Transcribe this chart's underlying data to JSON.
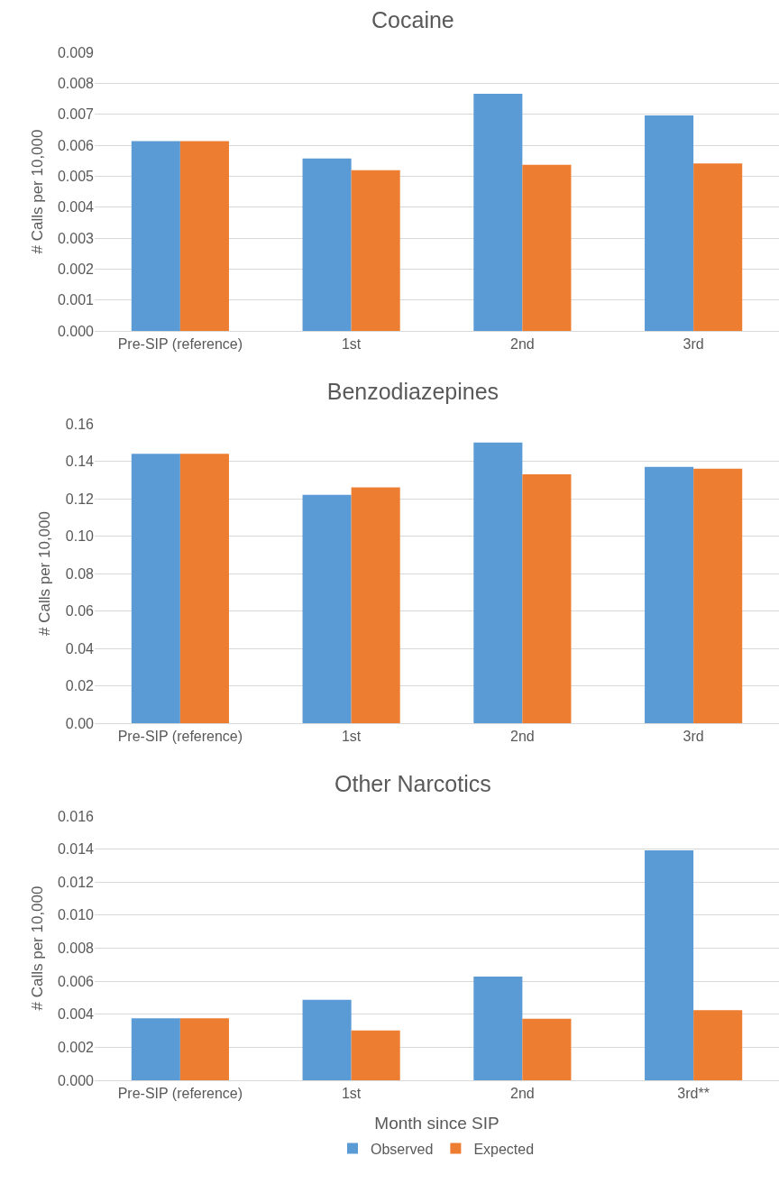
{
  "chart_data": [
    {
      "type": "bar",
      "title": "Cocaine",
      "ylabel": "# Calls per 10,000",
      "categories": [
        "Pre-SIP (reference)",
        "1st",
        "2nd",
        "3rd"
      ],
      "series": [
        {
          "color": "#5b9bd5",
          "values": [
            0.00613,
            0.00557,
            0.00766,
            0.00696
          ]
        },
        {
          "color": "#ed7d31",
          "values": [
            0.00613,
            0.00519,
            0.00537,
            0.00541
          ]
        }
      ],
      "ylim": [
        0,
        0.009
      ],
      "yticks": [
        {
          "value": 0,
          "label": "0.000"
        },
        {
          "value": 0.001,
          "label": "0.001"
        },
        {
          "value": 0.002,
          "label": "0.002"
        },
        {
          "value": 0.003,
          "label": "0.003"
        },
        {
          "value": 0.004,
          "label": "0.004"
        },
        {
          "value": 0.005,
          "label": "0.005"
        },
        {
          "value": 0.006,
          "label": "0.006"
        },
        {
          "value": 0.007,
          "label": "0.007"
        },
        {
          "value": 0.008,
          "label": "0.008"
        },
        {
          "value": 0.009,
          "label": "0.009"
        }
      ],
      "grid": "y"
    },
    {
      "type": "bar",
      "title": "Benzodiazepines",
      "ylabel": "# Calls per 10,000",
      "categories": [
        "Pre-SIP (reference)",
        "1st",
        "2nd",
        "3rd"
      ],
      "series": [
        {
          "color": "#5b9bd5",
          "values": [
            0.144,
            0.122,
            0.15,
            0.137
          ]
        },
        {
          "color": "#ed7d31",
          "values": [
            0.144,
            0.126,
            0.133,
            0.136
          ]
        }
      ],
      "ylim": [
        0,
        0.16
      ],
      "yticks": [
        {
          "value": 0,
          "label": "0.00"
        },
        {
          "value": 0.02,
          "label": "0.02"
        },
        {
          "value": 0.04,
          "label": "0.04"
        },
        {
          "value": 0.06,
          "label": "0.06"
        },
        {
          "value": 0.08,
          "label": "0.08"
        },
        {
          "value": 0.1,
          "label": "0.10"
        },
        {
          "value": 0.12,
          "label": "0.12"
        },
        {
          "value": 0.14,
          "label": "0.14"
        },
        {
          "value": 0.16,
          "label": "0.16"
        }
      ],
      "grid": "y"
    },
    {
      "type": "bar",
      "title": "Other Narcotics",
      "xlabel": "Month since SIP",
      "ylabel": "# Calls per 10,000",
      "categories": [
        "Pre-SIP (reference)",
        "1st",
        "2nd",
        "3rd**"
      ],
      "series": [
        {
          "name": "Observed",
          "color": "#5b9bd5",
          "values": [
            0.00376,
            0.00487,
            0.00628,
            0.01393
          ]
        },
        {
          "name": "Expected",
          "color": "#ed7d31",
          "values": [
            0.00376,
            0.00302,
            0.00373,
            0.00424
          ]
        }
      ],
      "ylim": [
        0,
        0.016
      ],
      "yticks": [
        {
          "value": 0,
          "label": "0.000"
        },
        {
          "value": 0.002,
          "label": "0.002"
        },
        {
          "value": 0.004,
          "label": "0.004"
        },
        {
          "value": 0.006,
          "label": "0.006"
        },
        {
          "value": 0.008,
          "label": "0.008"
        },
        {
          "value": 0.01,
          "label": "0.010"
        },
        {
          "value": 0.012,
          "label": "0.012"
        },
        {
          "value": 0.014,
          "label": "0.014"
        },
        {
          "value": 0.016,
          "label": "0.016"
        }
      ],
      "grid": "y",
      "legend": "bottom"
    }
  ]
}
